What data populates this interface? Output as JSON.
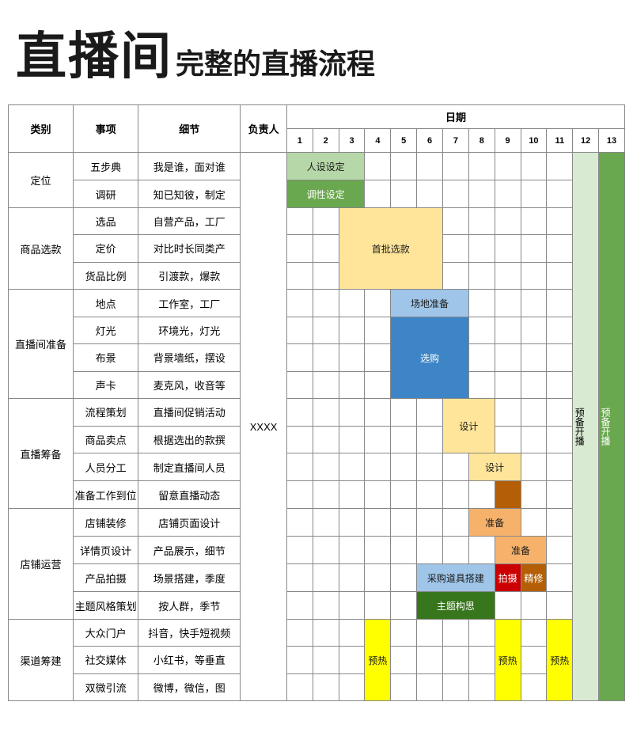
{
  "title_big": "直播间",
  "title_small": "完整的直播流程",
  "headers": {
    "category": "类别",
    "item": "事项",
    "detail": "细节",
    "responsible": "负责人",
    "date": "日期"
  },
  "days": [
    "1",
    "2",
    "3",
    "4",
    "5",
    "6",
    "7",
    "8",
    "9",
    "10",
    "11",
    "12",
    "13"
  ],
  "responsible_value": "XXXX",
  "colors": {
    "light_green": "#b6d7a8",
    "dark_green": "#6aa84f",
    "yellow_block": "#ffe599",
    "light_blue": "#9fc5e8",
    "blue": "#3d85c6",
    "orange": "#f6b26b",
    "brown": "#b45f06",
    "red": "#cc0000",
    "green2": "#38761d",
    "yellow_bright": "#ffff00",
    "pale_green": "#d9ead3",
    "deep_green_col": "#6aa84f",
    "white_text": "#ffffff",
    "dark_text": "#1a1a1a"
  },
  "right_cols": {
    "col12_label": "预备开播",
    "col13_label": "预备开播"
  },
  "sections": [
    {
      "category": "定位",
      "rows": [
        {
          "item": "五步典",
          "detail": "我是谁，面对谁",
          "bar": {
            "start": 1,
            "span": 3,
            "label": "人设设定",
            "color": "light_green"
          }
        },
        {
          "item": "调研",
          "detail": "知已知彼，制定",
          "bar": {
            "start": 1,
            "span": 3,
            "label": "调性设定",
            "color": "dark_green",
            "textColor": "white_text"
          }
        }
      ]
    },
    {
      "category": "商品选款",
      "rows": [
        {
          "item": "选品",
          "detail": "自营产品，工厂",
          "bar": {
            "start": 3,
            "span": 4,
            "label": "首批选款",
            "color": "yellow_block",
            "labelRow": 1
          }
        },
        {
          "item": "定价",
          "detail": "对比时长同类产",
          "bar": null
        },
        {
          "item": "货品比例",
          "detail": "引渡款，爆款",
          "bar": null
        }
      ],
      "merged_bar": {
        "start": 3,
        "span": 4,
        "rowspan": 3,
        "label": "首批选款",
        "color": "yellow_block"
      }
    },
    {
      "category": "直播间准备",
      "rows": [
        {
          "item": "地点",
          "detail": "工作室，工厂",
          "bar": {
            "start": 5,
            "span": 3,
            "label": "场地准备",
            "color": "light_blue"
          }
        },
        {
          "item": "灯光",
          "detail": "环境光，灯光",
          "bar": null
        },
        {
          "item": "布景",
          "detail": "背景墙纸，摆设",
          "bar": null
        },
        {
          "item": "声卡",
          "detail": "麦克风，收音等",
          "bar": null
        }
      ],
      "merged_bar2": {
        "start": 5,
        "span": 3,
        "rowspan": 3,
        "label": "选购",
        "color": "blue",
        "textColor": "white_text"
      }
    },
    {
      "category": "直播筹备",
      "rows": [
        {
          "item": "流程策划",
          "detail": "直播间促销活动",
          "bar": {
            "start": 7,
            "span": 2,
            "label": "设计",
            "color": "yellow_block"
          }
        },
        {
          "item": "商品卖点",
          "detail": "根据选出的款撰",
          "bar": null
        },
        {
          "item": "人员分工",
          "detail": "制定直播间人员",
          "bar": {
            "start": 8,
            "span": 2,
            "label": "设计",
            "color": "yellow_block"
          }
        },
        {
          "item": "准备工作到位",
          "detail": "留意直播动态",
          "bar": {
            "start": 9,
            "span": 1,
            "label": "",
            "color": "brown"
          }
        }
      ],
      "merged_bar3": {
        "start": 7,
        "span": 2,
        "rowspan": 2,
        "label": "设计",
        "color": "yellow_block"
      }
    },
    {
      "category": "店铺运营",
      "rows": [
        {
          "item": "店铺装修",
          "detail": "店铺页面设计",
          "bar": {
            "start": 8,
            "span": 2,
            "label": "准备",
            "color": "orange"
          }
        },
        {
          "item": "详情页设计",
          "detail": "产品展示，细节",
          "bar": {
            "start": 9,
            "span": 2,
            "label": "准备",
            "color": "orange"
          }
        },
        {
          "item": "产品拍摄",
          "detail": "场景搭建，季度",
          "bars": [
            {
              "start": 6,
              "span": 3,
              "label": "采购道具搭建",
              "color": "light_blue"
            },
            {
              "start": 9,
              "span": 1,
              "label": "拍摄",
              "color": "red",
              "textColor": "white_text"
            },
            {
              "start": 10,
              "span": 1,
              "label": "精修",
              "color": "brown",
              "textColor": "white_text"
            }
          ]
        },
        {
          "item": "主题风格策划",
          "detail": "按人群，季节",
          "bar": {
            "start": 6,
            "span": 3,
            "label": "主题构思",
            "color": "green2",
            "textColor": "white_text"
          }
        }
      ]
    },
    {
      "category": "渠道筹建",
      "rows": [
        {
          "item": "大众门户",
          "detail": "抖音，快手短视频",
          "bars": [
            {
              "start": 4,
              "span": 1,
              "label": "预热",
              "color": "yellow_bright",
              "rowspan": 3
            },
            {
              "start": 9,
              "span": 1,
              "label": "预热",
              "color": "yellow_bright",
              "rowspan": 3
            },
            {
              "start": 11,
              "span": 1,
              "label": "预热",
              "color": "yellow_bright",
              "rowspan": 3
            }
          ]
        },
        {
          "item": "社交媒体",
          "detail": "小红书，等垂直",
          "bar": null
        },
        {
          "item": "双微引流",
          "detail": "微博，微信，图",
          "bar": null
        }
      ]
    }
  ]
}
